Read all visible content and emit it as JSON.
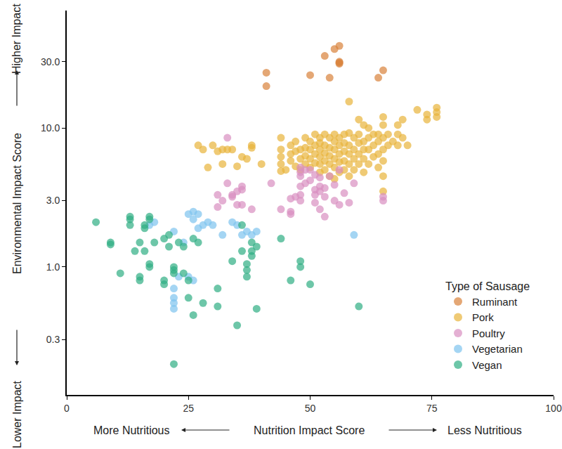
{
  "chart_data": {
    "type": "scatter",
    "x_label": "Nutrition Impact Score",
    "y_label": "Environmental Impact Score",
    "annotations": [
      "More Nutritious",
      "Less Nutritious",
      "Higher Impact",
      "Lower Impact"
    ],
    "legend_title": "Type of Sausage",
    "legend": "bottom right",
    "log": "y",
    "grid": false,
    "marker": "circle",
    "xlim": [
      0,
      100
    ],
    "xticks": [
      0,
      25,
      50,
      75,
      100
    ],
    "ylim": [
      0.12,
      70
    ],
    "yticks": [
      0.3,
      {
        "value": 1,
        "label": "1.0"
      },
      {
        "value": 3,
        "label": "3.0"
      },
      {
        "value": 10,
        "label": "10.0"
      },
      {
        "value": 30,
        "label": "30.0"
      }
    ],
    "series": [
      {
        "name": "Ruminant",
        "color": "#D9823B",
        "x": [
          56,
          55,
          53,
          56,
          56,
          41,
          41,
          50,
          54,
          64,
          65,
          56
        ],
        "values": [
          39,
          37,
          33,
          30,
          29,
          25,
          20,
          24,
          23,
          23,
          26,
          29.5
        ]
      },
      {
        "name": "Pork",
        "color": "#E8B33A",
        "x": [
          27,
          28,
          29,
          30,
          31,
          32,
          32,
          33,
          34,
          35,
          36,
          37,
          38,
          38,
          40,
          44,
          44,
          44,
          44,
          44,
          45,
          46,
          46,
          46,
          47,
          47,
          47,
          48,
          48,
          48,
          49,
          49,
          49,
          49,
          50,
          50,
          50,
          50,
          51,
          51,
          51,
          51,
          52,
          52,
          52,
          52,
          52,
          52,
          53,
          53,
          53,
          53,
          53,
          54,
          54,
          54,
          54,
          54,
          55,
          55,
          55,
          55,
          55,
          55,
          56,
          56,
          56,
          56,
          56,
          57,
          57,
          57,
          57,
          57,
          58,
          58,
          58,
          58,
          58,
          59,
          59,
          59,
          59,
          60,
          60,
          60,
          60,
          61,
          61,
          61,
          61,
          62,
          62,
          62,
          62,
          63,
          63,
          63,
          64,
          64,
          64,
          64,
          65,
          65,
          65,
          65,
          65,
          65,
          65,
          66,
          66,
          67,
          68,
          68,
          68,
          69,
          69,
          70,
          72,
          74,
          74,
          76,
          76,
          76,
          58,
          61,
          60
        ],
        "values": [
          7.5,
          7,
          5.2,
          7.5,
          6.8,
          7,
          5.5,
          7,
          7,
          5.3,
          6.2,
          6,
          7.5,
          7.2,
          5.5,
          8.5,
          7,
          5.5,
          6.2,
          4.9,
          5,
          7.5,
          6.5,
          5.8,
          8,
          6.8,
          5.3,
          7,
          6,
          5,
          8.5,
          7.2,
          6.3,
          5.5,
          8,
          7,
          6,
          5.2,
          9,
          7.5,
          6.5,
          5.6,
          8.5,
          7.8,
          7,
          6.2,
          5.5,
          4.8,
          9,
          7.5,
          6.6,
          5.8,
          5,
          8.5,
          7.2,
          6.3,
          5.5,
          4.5,
          9,
          8,
          7,
          6,
          5.2,
          4.3,
          8.5,
          7.5,
          6.5,
          5.7,
          4.8,
          9,
          7.8,
          6.8,
          5.8,
          5,
          9.2,
          7.5,
          6.5,
          5.5,
          4.5,
          8.5,
          7,
          6,
          5,
          9,
          7.8,
          6.5,
          5.5,
          8,
          7,
          6,
          4.8,
          10,
          8.5,
          7,
          5.5,
          9,
          7.5,
          6.2,
          9,
          8,
          6.5,
          5.2,
          12,
          10.5,
          8.5,
          7,
          5.8,
          4.5,
          3.5,
          9,
          7.5,
          8,
          10.5,
          9,
          7.5,
          11.5,
          8.5,
          7.5,
          13.5,
          12.5,
          11.5,
          14,
          13,
          12,
          15.5,
          10.5,
          11.5
        ]
      },
      {
        "name": "Poultry",
        "color": "#D98FC0",
        "x": [
          33,
          31,
          31,
          32,
          33,
          34,
          34,
          35,
          35,
          36,
          36,
          36,
          38,
          42,
          44,
          46,
          46,
          46,
          48,
          48,
          48,
          48,
          48,
          48,
          49,
          49,
          50,
          50,
          51,
          51,
          51,
          52,
          52,
          52,
          52,
          53,
          53,
          53,
          54,
          55,
          55,
          56,
          56,
          57,
          58,
          59,
          65,
          65,
          47,
          51
        ],
        "values": [
          8.5,
          3.3,
          2.7,
          3,
          4,
          3.3,
          3.2,
          2.8,
          3.5,
          3.8,
          3.6,
          2.8,
          2.6,
          4,
          2.6,
          3.1,
          2.5,
          2.4,
          5.2,
          4.8,
          4.5,
          3.8,
          3.3,
          3,
          5,
          4,
          5,
          4.2,
          4.6,
          3.6,
          3.3,
          4.4,
          3.5,
          3.8,
          2.6,
          3.7,
          3.2,
          2.3,
          4.5,
          3,
          3.9,
          5,
          2.8,
          3.4,
          2.9,
          4,
          3.2,
          3,
          3.2,
          2.9
        ]
      },
      {
        "name": "Vegetarian",
        "color": "#7EC3EE",
        "x": [
          18,
          17,
          22,
          24,
          25,
          26,
          26,
          27,
          27,
          28,
          29,
          30,
          32,
          34,
          35,
          37,
          38,
          39,
          36,
          22,
          22,
          22,
          22,
          25,
          26,
          23,
          59
        ],
        "values": [
          2.1,
          2,
          1.8,
          1.5,
          2.4,
          2.5,
          2.2,
          2.4,
          1.9,
          2,
          2.1,
          2,
          1.7,
          2.1,
          2,
          1.8,
          1.7,
          1.8,
          1.7,
          0.7,
          0.6,
          0.55,
          0.5,
          0.85,
          0.8,
          0.85,
          1.7
        ]
      },
      {
        "name": "Vegan",
        "color": "#2FAE83",
        "x": [
          6,
          9,
          9,
          11,
          13,
          13,
          13,
          14,
          15,
          15,
          15,
          16,
          16,
          16,
          17,
          17,
          17,
          17,
          18,
          20,
          20,
          20,
          21,
          21,
          22,
          22,
          22,
          22,
          23,
          24,
          24,
          25,
          25,
          26,
          26,
          27,
          28,
          31,
          31,
          34,
          35,
          36,
          36,
          37,
          37,
          37,
          38,
          38,
          38,
          39,
          39,
          44,
          46,
          48,
          48,
          50,
          60
        ],
        "values": [
          2.1,
          1.5,
          1.45,
          0.9,
          2.3,
          2.2,
          2,
          1.3,
          0.85,
          0.8,
          1.5,
          1.9,
          2,
          1.3,
          2.3,
          2.2,
          1.05,
          1,
          1.5,
          1.6,
          0.8,
          0.75,
          1.7,
          1.4,
          1,
          0.95,
          0.9,
          0.2,
          1.5,
          1.4,
          0.9,
          0.6,
          0.8,
          1.6,
          0.45,
          1.5,
          0.55,
          0.7,
          0.52,
          1.1,
          0.38,
          2,
          1.3,
          0.95,
          0.85,
          1.05,
          1.2,
          1.3,
          1.5,
          1.4,
          0.5,
          1.6,
          0.8,
          1.1,
          1,
          0.75,
          0.52
        ]
      }
    ]
  }
}
